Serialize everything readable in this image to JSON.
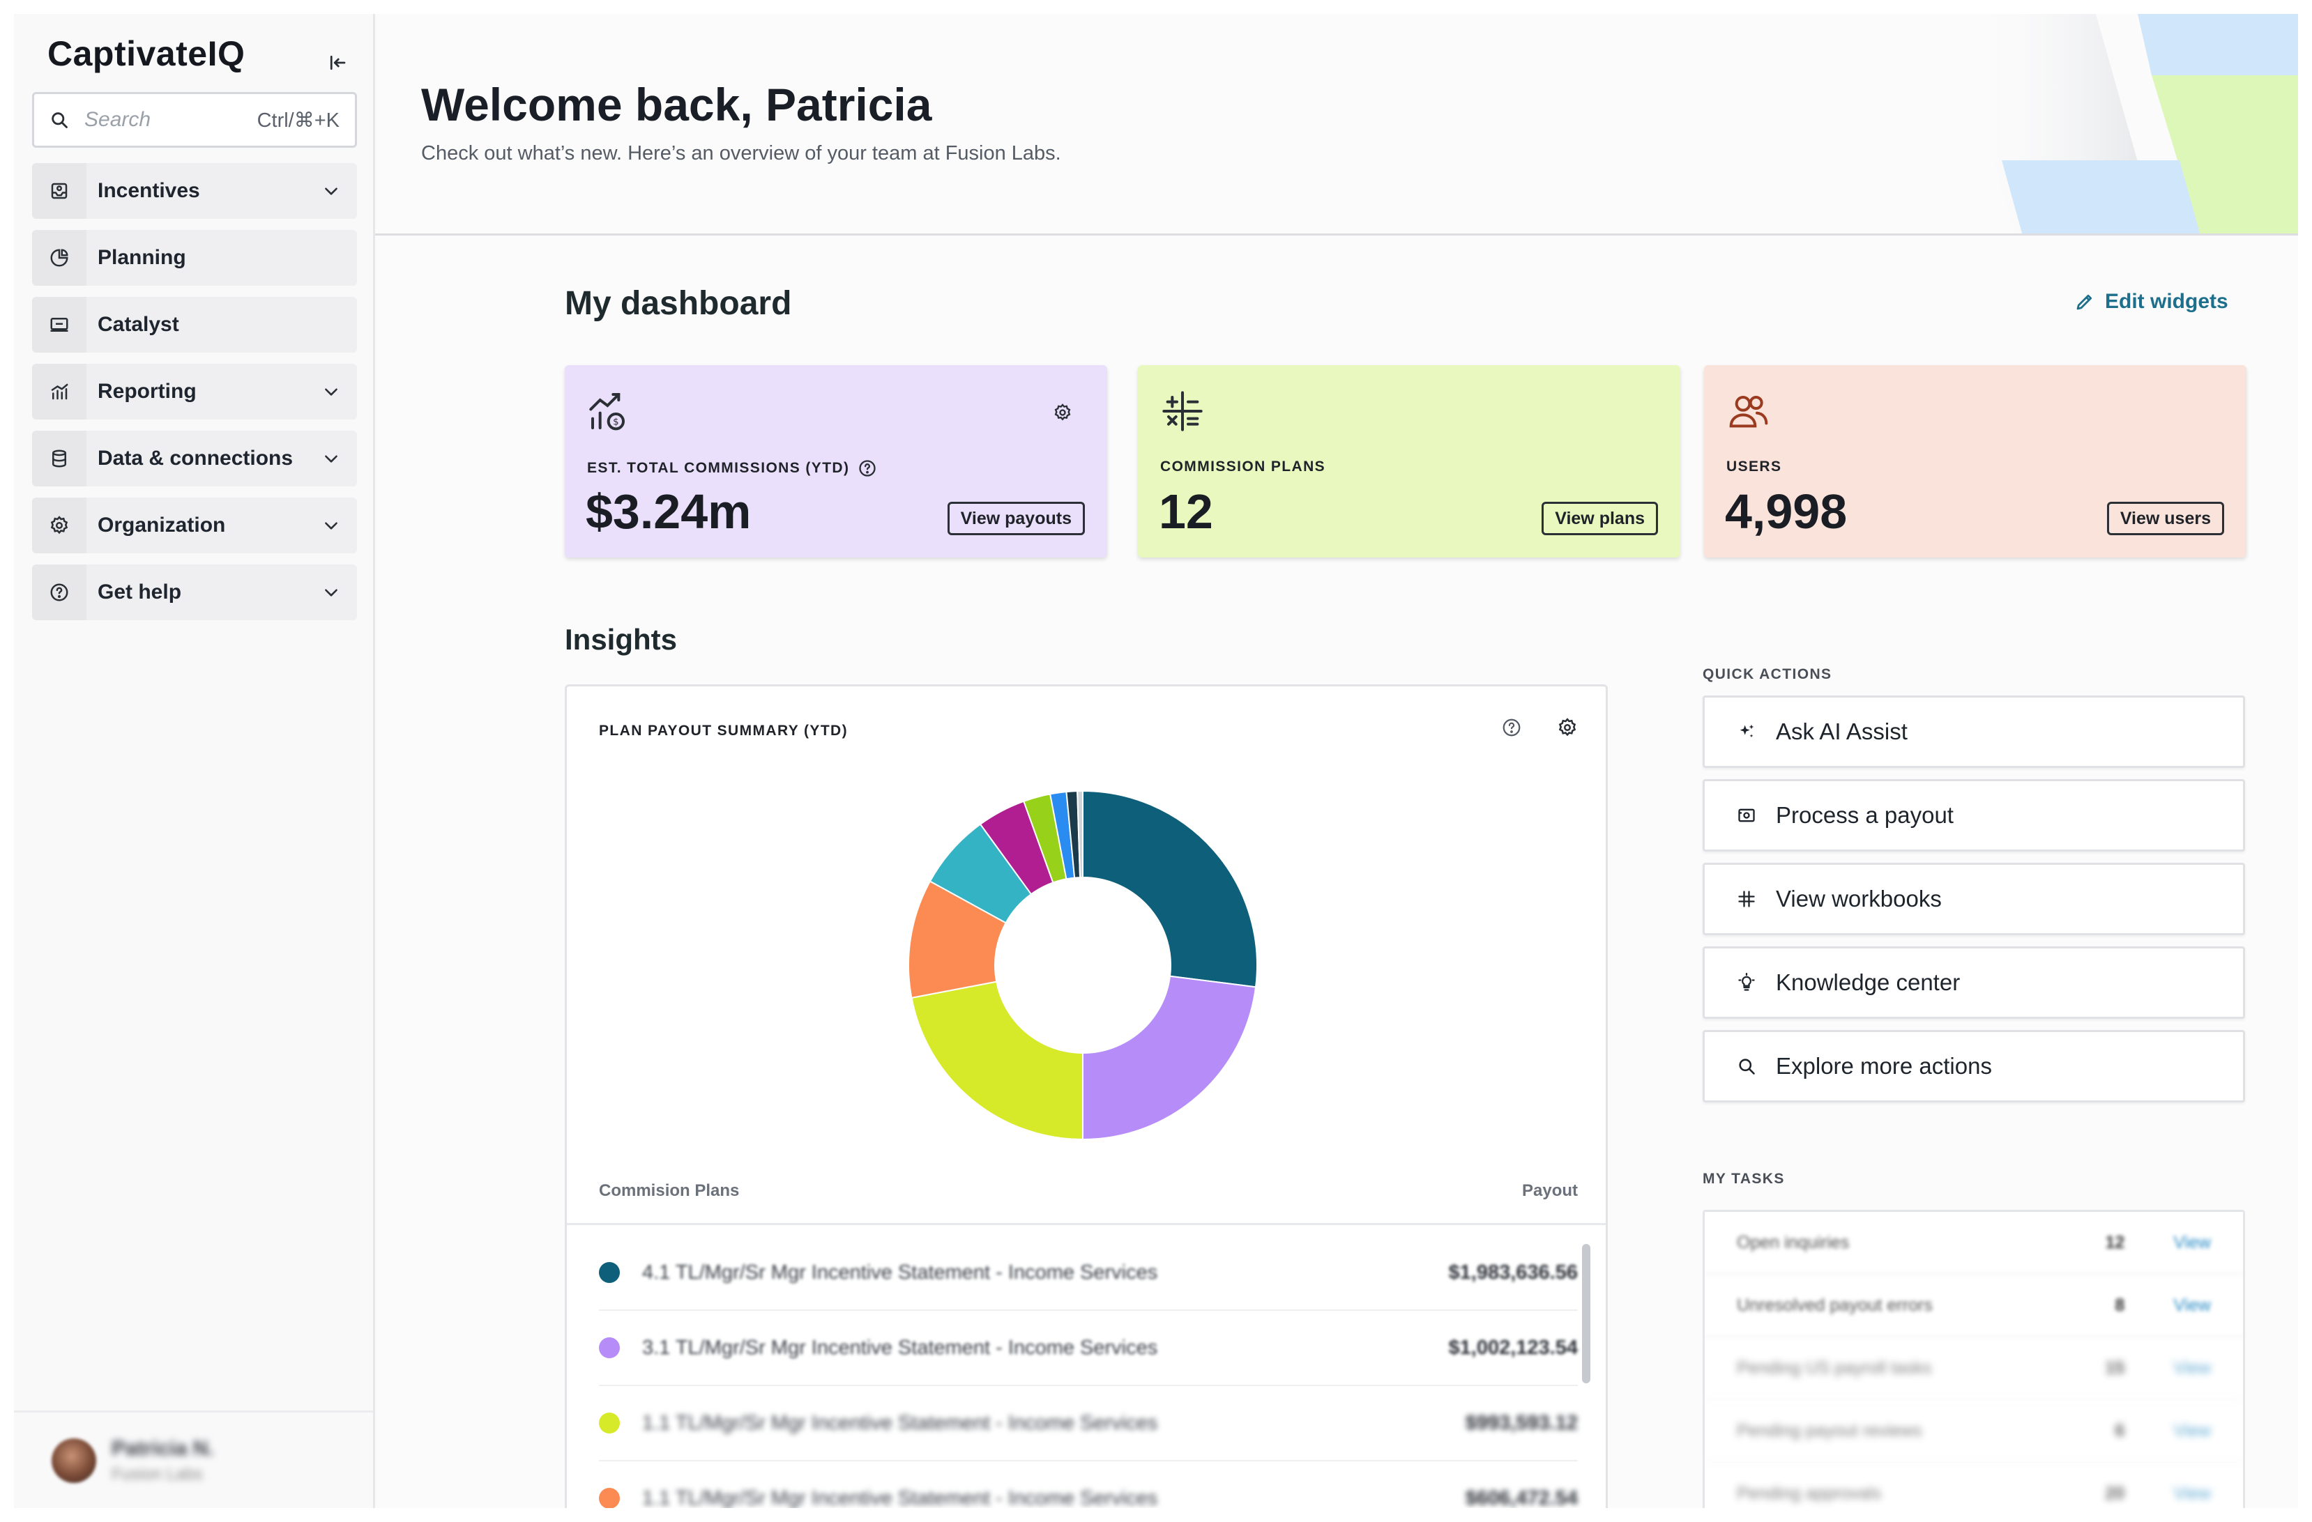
{
  "brand": "CaptivateIQ",
  "search": {
    "placeholder": "Search",
    "shortcut": "Ctrl/⌘+K"
  },
  "sidebar": {
    "items": [
      {
        "label": "Incentives",
        "icon": "incentives-icon",
        "expandable": true
      },
      {
        "label": "Planning",
        "icon": "planning-icon",
        "expandable": false
      },
      {
        "label": "Catalyst",
        "icon": "catalyst-icon",
        "expandable": false
      },
      {
        "label": "Reporting",
        "icon": "reporting-icon",
        "expandable": true
      },
      {
        "label": "Data & connections",
        "icon": "database-icon",
        "expandable": true
      },
      {
        "label": "Organization",
        "icon": "gear-icon",
        "expandable": true
      },
      {
        "label": "Get help",
        "icon": "help-icon",
        "expandable": true
      }
    ],
    "user": {
      "name": "Patricia N.",
      "org": "Fusion Labs"
    }
  },
  "header": {
    "title": "Welcome back, Patricia",
    "subtitle": "Check out what’s new. Here’s an overview of your team at Fusion Labs."
  },
  "dashboard": {
    "title": "My dashboard",
    "edit_label": "Edit widgets",
    "cards": [
      {
        "label": "EST. TOTAL COMMISSIONS (YTD)",
        "value": "$3.24m",
        "button": "View payouts",
        "bg": "#ebe0fb",
        "icon_color": "#2a2e35"
      },
      {
        "label": "COMMISSION PLANS",
        "value": "12",
        "button": "View plans",
        "bg": "#e8f8bf",
        "icon_color": "#2a2e35"
      },
      {
        "label": "USERS",
        "value": "4,998",
        "button": "View users",
        "bg": "#f9e3db",
        "icon_color": "#9a3b1f"
      }
    ]
  },
  "insights": {
    "title": "Insights",
    "chart_title": "PLAN PAYOUT SUMMARY (YTD)",
    "col_plans": "Commision Plans",
    "col_payout": "Payout",
    "rows": [
      {
        "name": "4.1 TL/Mgr/Sr Mgr Incentive Statement - Income Services",
        "amount": "$1,983,636.56",
        "color": "#0e5f7a"
      },
      {
        "name": "3.1 TL/Mgr/Sr Mgr Incentive Statement - Income Services",
        "amount": "$1,002,123.54",
        "color": "#b58cf8"
      },
      {
        "name": "1.1 TL/Mgr/Sr Mgr Incentive Statement - Income Services",
        "amount": "$993,593.12",
        "color": "#d6ea2a"
      },
      {
        "name": "1.1 TL/Mgr/Sr Mgr Incentive Statement - Income Services",
        "amount": "$606,472.54",
        "color": "#fb8b52"
      }
    ]
  },
  "chart_data": {
    "type": "pie",
    "title": "PLAN PAYOUT SUMMARY (YTD)",
    "donut": true,
    "slices": [
      {
        "value": 27,
        "color": "#0e5f7a"
      },
      {
        "value": 23,
        "color": "#b58cf8"
      },
      {
        "value": 22,
        "color": "#d6ea2a"
      },
      {
        "value": 11,
        "color": "#fb8b52"
      },
      {
        "value": 7,
        "color": "#33b3c4"
      },
      {
        "value": 4.5,
        "color": "#b01e92"
      },
      {
        "value": 2.5,
        "color": "#97d11a"
      },
      {
        "value": 1.5,
        "color": "#2a8cf0"
      },
      {
        "value": 1,
        "color": "#1b3a4a"
      },
      {
        "value": 0.5,
        "color": "#cfd4da"
      }
    ]
  },
  "quick_actions": {
    "label": "QUICK ACTIONS",
    "items": [
      {
        "label": "Ask AI Assist",
        "icon": "sparkle-icon"
      },
      {
        "label": "Process a payout",
        "icon": "payout-icon"
      },
      {
        "label": "View workbooks",
        "icon": "workbook-icon"
      },
      {
        "label": "Knowledge center",
        "icon": "lightbulb-icon"
      },
      {
        "label": "Explore more actions",
        "icon": "search-icon"
      }
    ]
  },
  "tasks": {
    "label": "MY TASKS",
    "items": [
      {
        "name": "Open inquiries",
        "count": "12",
        "action": "View"
      },
      {
        "name": "Unresolved payout errors",
        "count": "8",
        "action": "View"
      },
      {
        "name": "Pending US payroll tasks",
        "count": "15",
        "action": "View"
      },
      {
        "name": "Pending payout reviews",
        "count": "6",
        "action": "View"
      },
      {
        "name": "Pending approvals",
        "count": "20",
        "action": "View"
      }
    ]
  }
}
